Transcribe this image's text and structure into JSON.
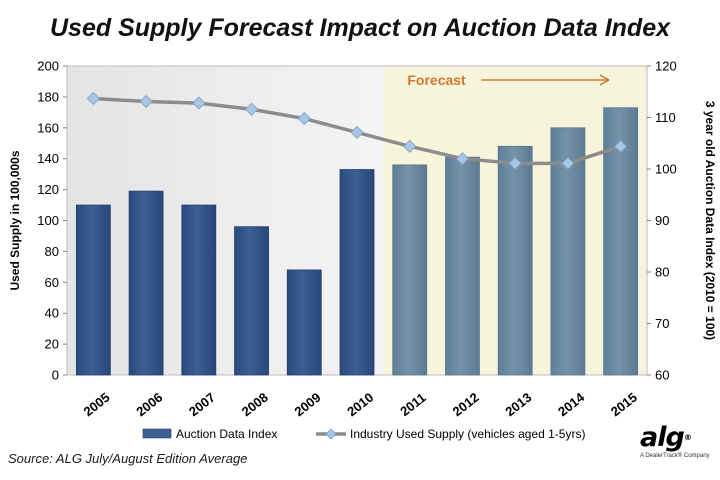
{
  "title": "Used Supply Forecast Impact on Auction Data Index",
  "source": "Source: ALG July/August  Edition Average",
  "logo": {
    "text": "alg",
    "tagline": "A DealerTrack® Company"
  },
  "colors": {
    "bar_actual": "#3c5f94",
    "bar_forecast": "#7593a8",
    "line": "#8c8c8c",
    "marker": "#a8c6e6",
    "forecast_band": "#f7f4dc",
    "forecast_text": "#d2772f"
  },
  "chart_data": {
    "type": "bar",
    "categories": [
      "2005",
      "2006",
      "2007",
      "2008",
      "2009",
      "2010",
      "2011",
      "2012",
      "2013",
      "2014",
      "2015"
    ],
    "forecast_start": "2011",
    "forecast_label": "Forecast",
    "left_axis": {
      "label": "Used Supply in 100,000s",
      "range": [
        0,
        200
      ],
      "ticks": [
        0,
        20,
        40,
        60,
        80,
        100,
        120,
        140,
        160,
        180,
        200
      ]
    },
    "right_axis": {
      "label": "3 year old Auction Data Index (2010 = 100)",
      "range": [
        60,
        120
      ],
      "ticks": [
        60,
        70,
        80,
        90,
        100,
        110,
        120
      ]
    },
    "series": [
      {
        "name": "Auction Data Index",
        "type": "bar",
        "axis": "left",
        "values": [
          110,
          119,
          110,
          96,
          68,
          133,
          136,
          141,
          148,
          160,
          173
        ]
      },
      {
        "name": "Industry Used Supply (vehicles aged 1-5yrs)",
        "type": "line",
        "axis": "left",
        "values": [
          179,
          177,
          176,
          172,
          166,
          157,
          148,
          140,
          137,
          137,
          148
        ]
      }
    ],
    "legend_position": "bottom",
    "grid": false
  }
}
